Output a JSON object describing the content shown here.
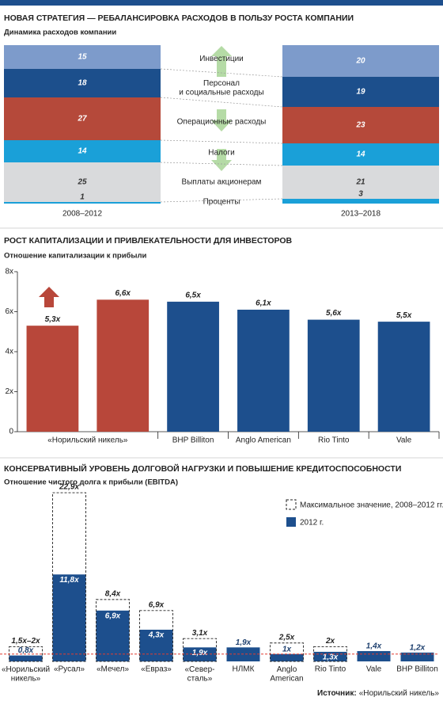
{
  "chart_data": [
    {
      "type": "stacked_bar",
      "title": "НОВАЯ СТРАТЕГИЯ — РЕБАЛАНСИРОВКА РАСХОДОВ В ПОЛЬЗУ РОСТА КОМПАНИИ",
      "subtitle": "Динамика расходов компании",
      "categories": [
        "2008–2012",
        "2013–2018"
      ],
      "series": [
        {
          "name": "Инвестиции",
          "color": "#7d9bcb",
          "values": [
            15,
            20
          ]
        },
        {
          "name": "Персонал\nи социальные расходы",
          "color": "#1c4f8c",
          "values": [
            18,
            19
          ]
        },
        {
          "name": "Операционные расходы",
          "color": "#b5493a",
          "values": [
            27,
            23
          ]
        },
        {
          "name": "Налоги",
          "color": "#1aa0d8",
          "values": [
            14,
            14
          ]
        },
        {
          "name": "Выплаты акционерам",
          "color": "#d9dadc",
          "values": [
            25,
            21
          ]
        },
        {
          "name": "Проценты",
          "color": "#1aa0d8",
          "values": [
            1,
            3
          ]
        }
      ]
    },
    {
      "type": "bar",
      "title": "РОСТ КАПИТАЛИЗАЦИИ И ПРИВЛЕКАТЕЛЬНОСТИ ДЛЯ ИНВЕСТОРОВ",
      "subtitle": "Отношение капитализации к прибыли",
      "categories": [
        "«Норильский никель»",
        "BHP Billiton",
        "Anglo American",
        "Rio Tinto",
        "Vale"
      ],
      "values": [
        [
          5.3,
          6.6
        ],
        [
          6.5
        ],
        [
          6.1
        ],
        [
          5.6
        ],
        [
          5.5
        ]
      ],
      "value_labels": [
        [
          "5,3x",
          "6,6x"
        ],
        [
          "6,5x"
        ],
        [
          "6,1x"
        ],
        [
          "5,6x"
        ],
        [
          "5,5x"
        ]
      ],
      "colors": [
        "#b8473a",
        "#1d4f8d",
        "#1d4f8d",
        "#1d4f8d",
        "#1d4f8d"
      ],
      "ylim": [
        0,
        8
      ],
      "yticks": [
        0,
        {
          "value": 2,
          "label": "2x"
        },
        {
          "value": 4,
          "label": "4x"
        },
        {
          "value": 6,
          "label": "6x"
        },
        {
          "value": 8,
          "label": "8x"
        }
      ]
    },
    {
      "type": "overlay_bar",
      "title": "КОНСЕРВАТИВНЫЙ УРОВЕНЬ ДОЛГОВОЙ НАГРУЗКИ И ПОВЫШЕНИЕ КРЕДИТОСПОСОБНОСТИ",
      "subtitle": "Отношение чистого долга к прибыли (EBITDA)",
      "categories": [
        "«Норильский\nникель»",
        "«Русал»",
        "«Мечел»",
        "«Евраз»",
        "«Север-\nсталь»",
        "НЛМК",
        "Anglo\nAmerican",
        "Rio Tinto",
        "Vale",
        "BHP Billiton"
      ],
      "series": [
        {
          "name": "Максимальное значение, 2008–2012 гг.",
          "style": "dashed",
          "values": [
            2,
            22.9,
            8.4,
            6.9,
            3.1,
            null,
            2.5,
            2,
            null,
            null
          ],
          "value_labels": [
            "1,5x–2x",
            "22,9x",
            "8,4x",
            "6,9x",
            "3,1x",
            null,
            "2,5x",
            "2x",
            null,
            null
          ]
        },
        {
          "name": "2012 г.",
          "color": "#1d4f8d",
          "values": [
            0.8,
            11.8,
            6.9,
            4.3,
            1.9,
            1.9,
            1,
            1.3,
            1.4,
            1.2
          ],
          "value_labels": [
            "0,8x",
            "11,8x",
            "6,9x",
            "4,3x",
            "1,9x",
            "1,9x",
            "1x",
            "1,3x",
            "1,4x",
            "1,2x"
          ]
        }
      ],
      "reference_line": 1,
      "reference_color": "#e03c31",
      "source_label": "Источник:",
      "source": "«Норильский никель»"
    }
  ]
}
